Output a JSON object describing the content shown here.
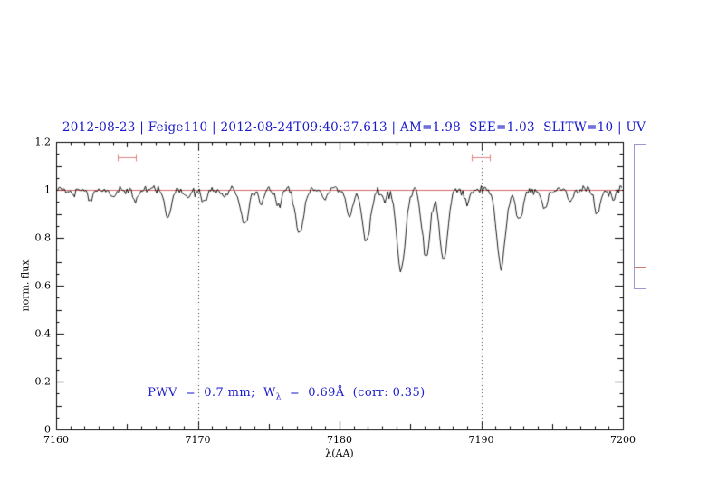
{
  "title": "2012-08-23 | Feige110 | 2012-08-24T09:40:37.613 | AM=1.98  SEE=1.03  SLITW=10 | UV",
  "annotation": {
    "prefix": "PWV  =  0.7 mm;  W",
    "sub": "λ",
    "suffix": "  =  0.69Å  (corr: 0.35)"
  },
  "colors": {
    "title": "#1a1acc",
    "annotation": "#1a1acc",
    "spectrum": "#000000",
    "reference": "#cc4444",
    "marker": "#e08080",
    "frame": "#000000",
    "vline": "#333333",
    "panel_border": "#9a9ad0",
    "panel_tick": "#cc7777"
  },
  "chart_data": {
    "type": "line",
    "title": "2012-08-23 | Feige110 | 2012-08-24T09:40:37.613 | AM=1.98  SEE=1.03  SLITW=10 | UV",
    "xlabel": "λ(AA)",
    "ylabel": "norm. flux",
    "xlim": [
      7160,
      7200
    ],
    "ylim": [
      0,
      1.2
    ],
    "x_ticks": [
      7160,
      7170,
      7180,
      7190,
      7200
    ],
    "x_tick_labels": [
      "7160",
      "7170",
      "7180",
      "7190",
      "7200"
    ],
    "x_minor_step": 1,
    "y_ticks": [
      0,
      0.2,
      0.4,
      0.6,
      0.8,
      1,
      1.2
    ],
    "y_tick_labels": [
      "0",
      "0.2",
      "0.4",
      "0.6",
      "0.8",
      "1",
      "1.2"
    ],
    "y_minor_step": 0.05,
    "grid": false,
    "baseline": 1.0,
    "noise_sigma": 0.009,
    "sample_step": 0.1,
    "seed": 20120823,
    "reference_line_y": 1.0,
    "dotted_vlines": [
      7170,
      7190
    ],
    "top_markers": [
      {
        "center": 7165.0,
        "halfwidth": 0.65,
        "y": 1.135
      },
      {
        "center": 7189.95,
        "halfwidth": 0.65,
        "y": 1.135
      }
    ],
    "absorption_lines": [
      [
        7161.3,
        0.03,
        0.15
      ],
      [
        7162.4,
        0.04,
        0.18
      ],
      [
        7164.0,
        0.03,
        0.15
      ],
      [
        7165.6,
        0.04,
        0.15
      ],
      [
        7167.9,
        0.12,
        0.22
      ],
      [
        7169.3,
        0.04,
        0.15
      ],
      [
        7170.4,
        0.05,
        0.18
      ],
      [
        7171.9,
        0.04,
        0.15
      ],
      [
        7173.3,
        0.14,
        0.28
      ],
      [
        7174.5,
        0.05,
        0.18
      ],
      [
        7175.7,
        0.07,
        0.2
      ],
      [
        7177.2,
        0.18,
        0.28
      ],
      [
        7178.9,
        0.05,
        0.18
      ],
      [
        7180.7,
        0.11,
        0.24
      ],
      [
        7181.9,
        0.22,
        0.28
      ],
      [
        7183.2,
        0.05,
        0.18
      ],
      [
        7184.35,
        0.34,
        0.3
      ],
      [
        7186.1,
        0.28,
        0.28
      ],
      [
        7187.35,
        0.3,
        0.28
      ],
      [
        7189.0,
        0.05,
        0.18
      ],
      [
        7191.4,
        0.32,
        0.3
      ],
      [
        7192.7,
        0.13,
        0.24
      ],
      [
        7194.5,
        0.08,
        0.2
      ],
      [
        7196.3,
        0.05,
        0.18
      ],
      [
        7198.2,
        0.1,
        0.22
      ],
      [
        7199.3,
        0.04,
        0.15
      ]
    ]
  },
  "side_panel": {
    "present": true,
    "tick_fraction": 0.85
  }
}
